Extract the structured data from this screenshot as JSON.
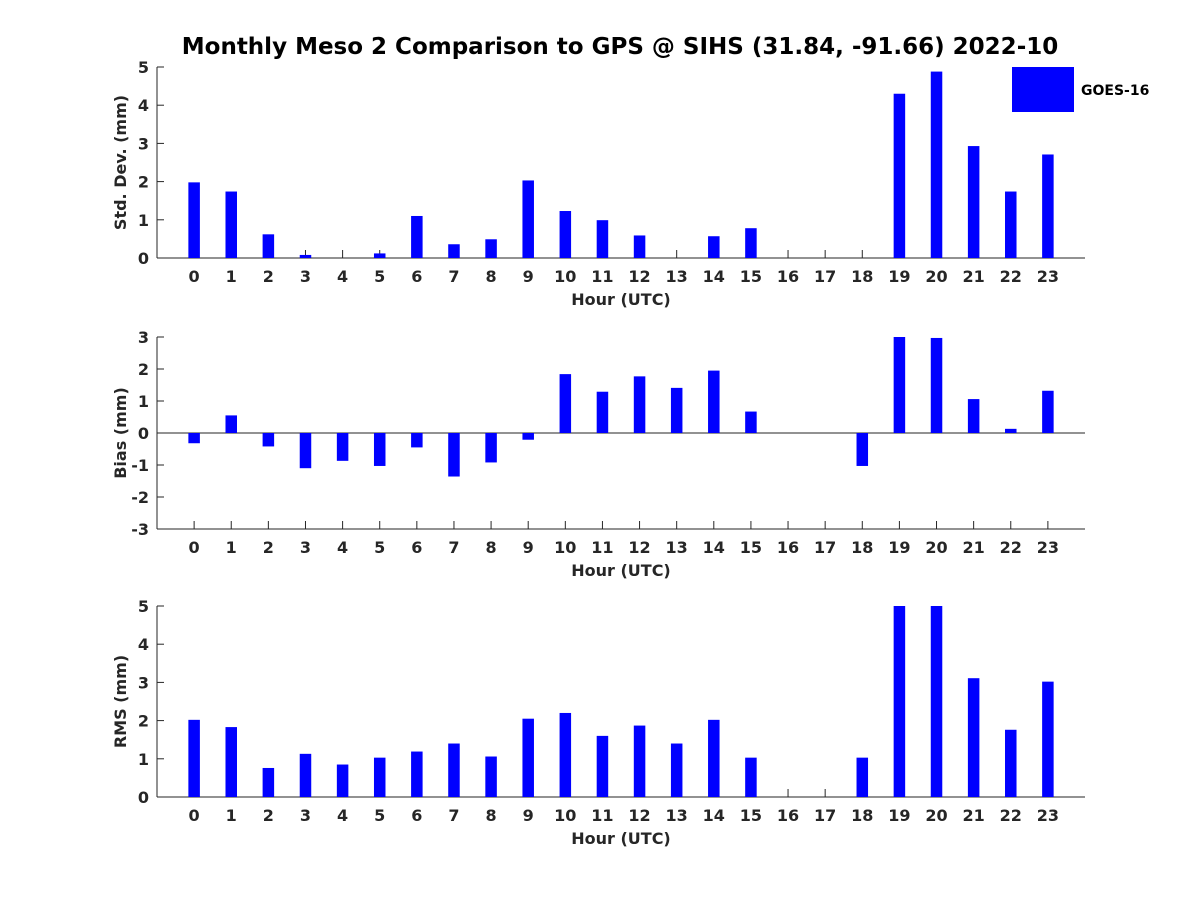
{
  "chart_data": {
    "title": "Monthly Meso 2 Comparison to GPS @ SIHS (31.84, -91.66) 2022-10",
    "legend": {
      "placement": "top-right",
      "entries": [
        {
          "name": "GOES-16",
          "color": "#0000ff"
        }
      ]
    },
    "subplots": [
      {
        "type": "bar",
        "xlabel": "Hour (UTC)",
        "ylabel": "Std. Dev. (mm)",
        "ylim": [
          0,
          5
        ],
        "yticks": [
          "0",
          "1",
          "2",
          "3",
          "4",
          "5"
        ],
        "categories": [
          "0",
          "1",
          "2",
          "3",
          "4",
          "5",
          "6",
          "7",
          "8",
          "9",
          "10",
          "11",
          "12",
          "13",
          "14",
          "15",
          "16",
          "17",
          "18",
          "19",
          "20",
          "21",
          "22",
          "23"
        ],
        "series": [
          {
            "name": "GOES-16",
            "color": "#0000ff",
            "values": [
              1.98,
              1.74,
              0.62,
              0.08,
              null,
              0.12,
              1.1,
              0.36,
              0.49,
              2.03,
              1.23,
              0.99,
              0.59,
              null,
              0.57,
              0.78,
              null,
              null,
              null,
              4.3,
              4.88,
              2.93,
              1.74,
              2.71
            ]
          }
        ]
      },
      {
        "type": "bar",
        "xlabel": "Hour (UTC)",
        "ylabel": "Bias (mm)",
        "ylim": [
          -3,
          3
        ],
        "yticks": [
          "-3",
          "-2",
          "-1",
          "0",
          "1",
          "2",
          "3"
        ],
        "categories": [
          "0",
          "1",
          "2",
          "3",
          "4",
          "5",
          "6",
          "7",
          "8",
          "9",
          "10",
          "11",
          "12",
          "13",
          "14",
          "15",
          "16",
          "17",
          "18",
          "19",
          "20",
          "21",
          "22",
          "23"
        ],
        "series": [
          {
            "name": "GOES-16",
            "color": "#0000ff",
            "values": [
              -0.32,
              0.55,
              -0.42,
              -1.1,
              -0.87,
              -1.03,
              -0.45,
              -1.36,
              -0.92,
              -0.21,
              1.84,
              1.29,
              1.77,
              1.41,
              1.95,
              0.67,
              null,
              null,
              -1.03,
              3.0,
              2.97,
              1.06,
              0.13,
              1.32
            ]
          }
        ]
      },
      {
        "type": "bar",
        "xlabel": "Hour (UTC)",
        "ylabel": "RMS (mm)",
        "ylim": [
          0,
          5
        ],
        "yticks": [
          "0",
          "1",
          "2",
          "3",
          "4",
          "5"
        ],
        "categories": [
          "0",
          "1",
          "2",
          "3",
          "4",
          "5",
          "6",
          "7",
          "8",
          "9",
          "10",
          "11",
          "12",
          "13",
          "14",
          "15",
          "16",
          "17",
          "18",
          "19",
          "20",
          "21",
          "22",
          "23"
        ],
        "series": [
          {
            "name": "GOES-16",
            "color": "#0000ff",
            "values": [
              2.02,
              1.83,
              0.76,
              1.13,
              0.85,
              1.03,
              1.19,
              1.4,
              1.06,
              2.05,
              2.2,
              1.6,
              1.87,
              1.4,
              2.02,
              1.03,
              null,
              null,
              1.03,
              5.0,
              5.0,
              3.11,
              1.76,
              3.02
            ]
          }
        ]
      }
    ]
  }
}
